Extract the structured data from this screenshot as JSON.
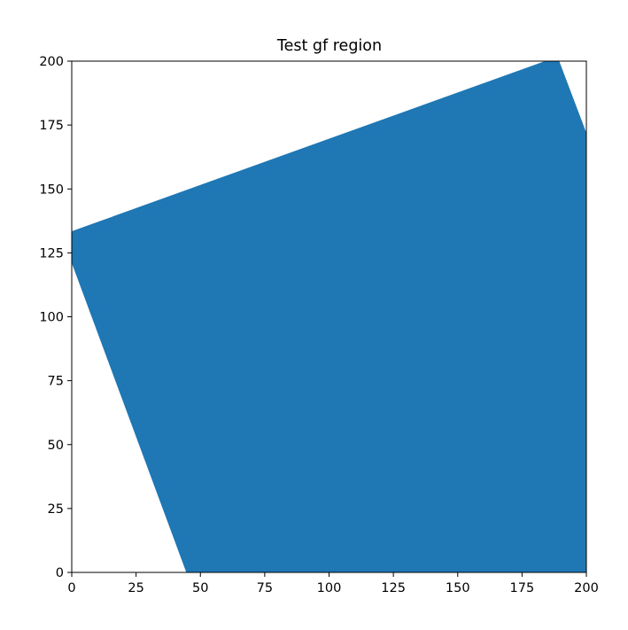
{
  "chart_data": {
    "type": "scatter",
    "title": "Test gf region",
    "xlabel": "",
    "ylabel": "",
    "xlim": [
      0,
      200
    ],
    "ylim": [
      0,
      200
    ],
    "xticks": [
      0,
      25,
      50,
      75,
      100,
      125,
      150,
      175,
      200
    ],
    "yticks": [
      0,
      25,
      50,
      75,
      100,
      125,
      150,
      175,
      200
    ],
    "grid": false,
    "legend": false,
    "series": [
      {
        "color": "#1f77b4",
        "marker": "o",
        "region_polygon": [
          [
            0,
            132
          ],
          [
            188,
            200
          ],
          [
            200,
            168
          ],
          [
            200,
            0
          ],
          [
            46,
            0
          ],
          [
            0,
            125
          ]
        ]
      }
    ]
  }
}
